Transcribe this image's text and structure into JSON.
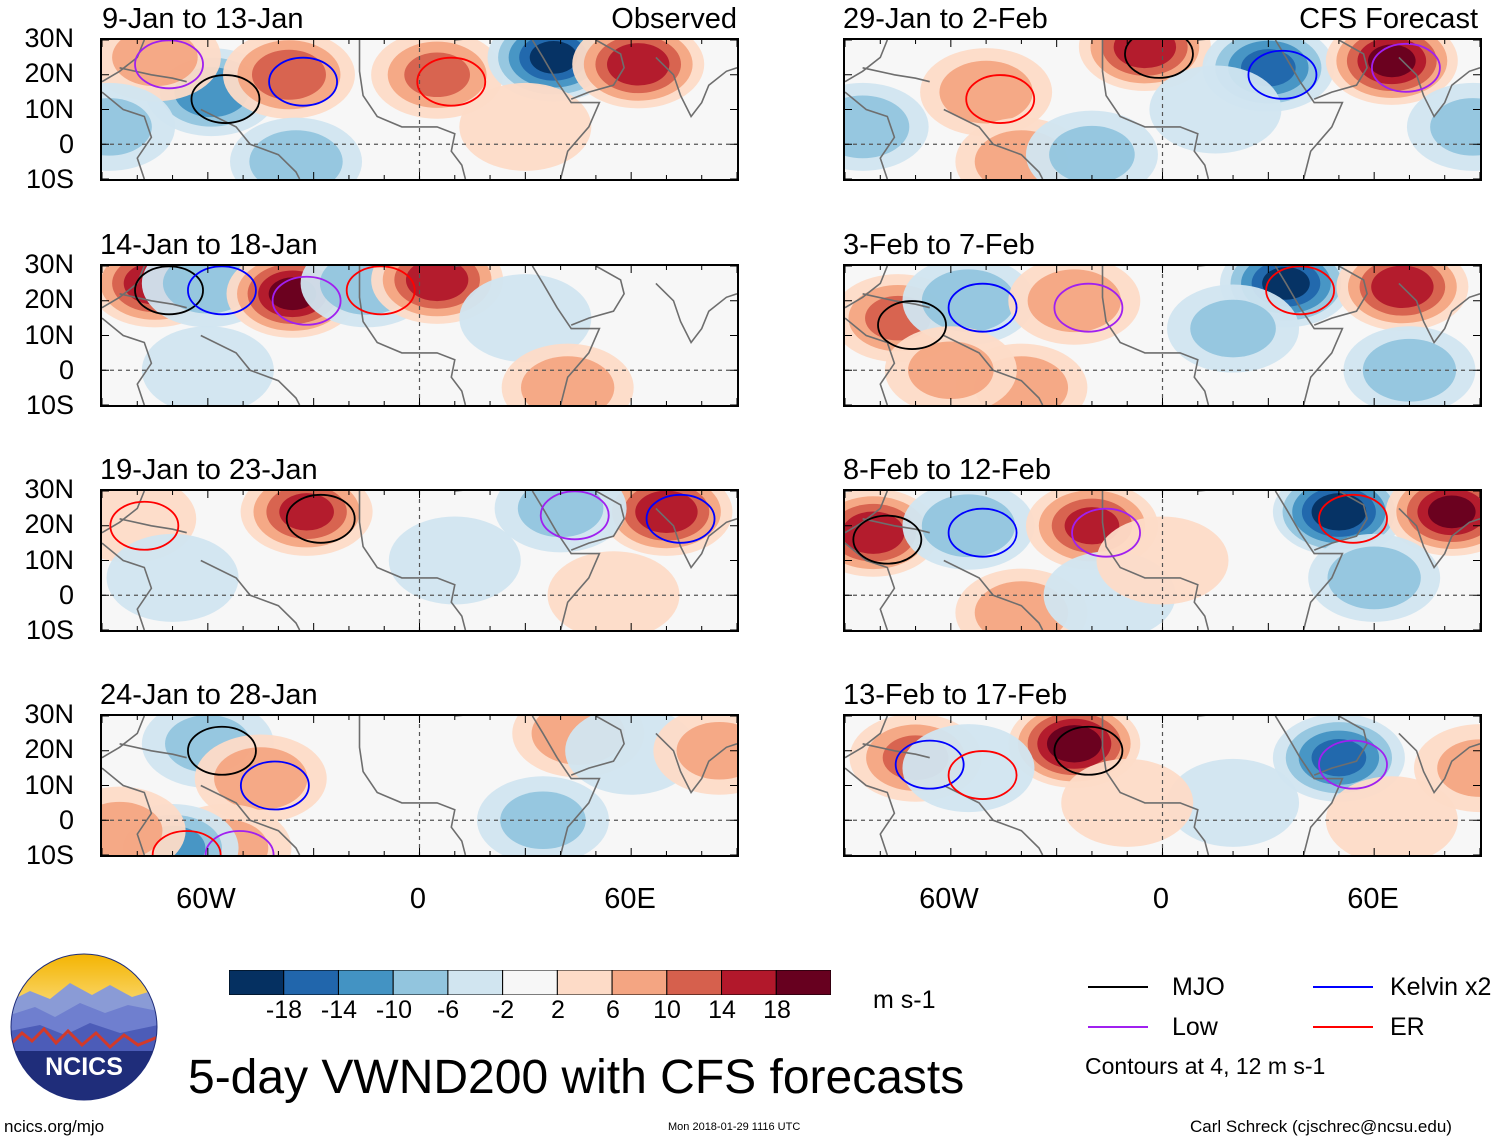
{
  "header": {
    "observed_label": "Observed",
    "forecast_label": "CFS Forecast"
  },
  "panels": [
    {
      "title": "9-Jan to 13-Jan"
    },
    {
      "title": "14-Jan to 18-Jan"
    },
    {
      "title": "19-Jan to 23-Jan"
    },
    {
      "title": "24-Jan to 28-Jan"
    },
    {
      "title": "29-Jan to 2-Feb"
    },
    {
      "title": "3-Feb to 7-Feb"
    },
    {
      "title": "8-Feb to 12-Feb"
    },
    {
      "title": "13-Feb to 17-Feb"
    }
  ],
  "axes": {
    "lat_labels": [
      "30N",
      "20N",
      "10N",
      "0",
      "10S"
    ],
    "lon_labels": [
      "60W",
      "0",
      "60E"
    ]
  },
  "colorbar": {
    "ticks": [
      "-18",
      "-14",
      "-10",
      "-6",
      "-2",
      "2",
      "6",
      "10",
      "14",
      "18"
    ],
    "colors": [
      "#053061",
      "#2166ac",
      "#4393c3",
      "#92c5de",
      "#d1e5f0",
      "#f7f7f7",
      "#fddbc7",
      "#f4a582",
      "#d6604d",
      "#b2182b",
      "#67001f"
    ],
    "units": "m s-1"
  },
  "title": "5-day VWND200 with CFS forecasts",
  "legend": {
    "items": [
      {
        "label": "MJO",
        "color": "#000000"
      },
      {
        "label": "Kelvin x2",
        "color": "#0000ff"
      },
      {
        "label": "Low",
        "color": "#a020f0"
      },
      {
        "label": "ER",
        "color": "#ff0000"
      }
    ],
    "contour_note": "Contours at 4, 12 m s-1"
  },
  "logo": {
    "text": "NCICS"
  },
  "footer": {
    "left": "ncics.org/mjo",
    "center": "Mon 2018-01-29 1116 UTC",
    "right": "Carl Schreck (cjschrec@ncsu.edu)"
  },
  "chart_data": {
    "type": "heatmap",
    "variable": "VWND200",
    "units": "m s-1",
    "lat_range": [
      -10,
      30
    ],
    "lon_range": [
      -90,
      90
    ],
    "levels": [
      -18,
      -14,
      -10,
      -6,
      -2,
      2,
      6,
      10,
      14,
      18
    ],
    "contour_levels": [
      4,
      12
    ],
    "panels": [
      {
        "title": "9-Jan to 13-Jan",
        "source": "Observed",
        "anomalies": [
          {
            "lon": -59,
            "lat": 15,
            "v": -14
          },
          {
            "lon": -37,
            "lat": 20,
            "v": 14
          },
          {
            "lon": -75,
            "lat": 25,
            "v": 8
          },
          {
            "lon": 5,
            "lat": 20,
            "v": 12
          },
          {
            "lon": 38,
            "lat": 25,
            "v": -20
          },
          {
            "lon": 62,
            "lat": 23,
            "v": 18
          },
          {
            "lon": -88,
            "lat": 5,
            "v": -8
          },
          {
            "lon": -35,
            "lat": -5,
            "v": -10
          },
          {
            "lon": 30,
            "lat": 5,
            "v": 6
          }
        ]
      },
      {
        "title": "14-Jan to 18-Jan",
        "source": "Observed",
        "anomalies": [
          {
            "lon": -75,
            "lat": 25,
            "v": 18
          },
          {
            "lon": -60,
            "lat": 25,
            "v": -9
          },
          {
            "lon": -36,
            "lat": 22,
            "v": 20
          },
          {
            "lon": -15,
            "lat": 25,
            "v": -10
          },
          {
            "lon": 5,
            "lat": 26,
            "v": 18
          },
          {
            "lon": 30,
            "lat": 15,
            "v": -4
          },
          {
            "lon": 42,
            "lat": -5,
            "v": 10
          },
          {
            "lon": -60,
            "lat": 0,
            "v": -5
          }
        ]
      },
      {
        "title": "19-Jan to 23-Jan",
        "source": "Observed",
        "anomalies": [
          {
            "lon": -32,
            "lat": 24,
            "v": 16
          },
          {
            "lon": 70,
            "lat": 24,
            "v": 18
          },
          {
            "lon": 40,
            "lat": 25,
            "v": -8
          },
          {
            "lon": -82,
            "lat": 22,
            "v": 6
          },
          {
            "lon": -70,
            "lat": 5,
            "v": -5
          },
          {
            "lon": 10,
            "lat": 10,
            "v": -3
          },
          {
            "lon": 55,
            "lat": 0,
            "v": 4
          }
        ]
      },
      {
        "title": "24-Jan to 28-Jan",
        "source": "Observed",
        "anomalies": [
          {
            "lon": -60,
            "lat": 22,
            "v": -8
          },
          {
            "lon": -45,
            "lat": 12,
            "v": 10
          },
          {
            "lon": -55,
            "lat": -8,
            "v": 8
          },
          {
            "lon": -70,
            "lat": -8,
            "v": -12
          },
          {
            "lon": 45,
            "lat": 25,
            "v": 10
          },
          {
            "lon": 60,
            "lat": 20,
            "v": -4
          },
          {
            "lon": 35,
            "lat": 0,
            "v": -8
          },
          {
            "lon": 85,
            "lat": 20,
            "v": 8
          },
          {
            "lon": -85,
            "lat": -3,
            "v": 8
          }
        ]
      },
      {
        "title": "29-Jan to 2-Feb",
        "source": "CFS Forecast",
        "anomalies": [
          {
            "lon": -5,
            "lat": 28,
            "v": 18
          },
          {
            "lon": 30,
            "lat": 22,
            "v": -16
          },
          {
            "lon": 65,
            "lat": 24,
            "v": 20
          },
          {
            "lon": -50,
            "lat": 15,
            "v": 10
          },
          {
            "lon": -85,
            "lat": 5,
            "v": -10
          },
          {
            "lon": -40,
            "lat": -5,
            "v": 10
          },
          {
            "lon": -20,
            "lat": -3,
            "v": -8
          },
          {
            "lon": 88,
            "lat": 5,
            "v": -8
          },
          {
            "lon": 15,
            "lat": 10,
            "v": -5
          }
        ]
      },
      {
        "title": "3-Feb to 7-Feb",
        "source": "CFS Forecast",
        "anomalies": [
          {
            "lon": -75,
            "lat": 15,
            "v": 12
          },
          {
            "lon": -55,
            "lat": 20,
            "v": -10
          },
          {
            "lon": -25,
            "lat": 20,
            "v": 10
          },
          {
            "lon": 35,
            "lat": 25,
            "v": -20
          },
          {
            "lon": 68,
            "lat": 24,
            "v": 18
          },
          {
            "lon": 70,
            "lat": 0,
            "v": -10
          },
          {
            "lon": -40,
            "lat": -5,
            "v": 10
          },
          {
            "lon": 20,
            "lat": 12,
            "v": -8
          },
          {
            "lon": -60,
            "lat": 0,
            "v": 8
          }
        ]
      },
      {
        "title": "8-Feb to 12-Feb",
        "source": "CFS Forecast",
        "anomalies": [
          {
            "lon": -82,
            "lat": 18,
            "v": 18
          },
          {
            "lon": -55,
            "lat": 20,
            "v": -10
          },
          {
            "lon": -20,
            "lat": 20,
            "v": 16
          },
          {
            "lon": 50,
            "lat": 24,
            "v": -22
          },
          {
            "lon": 82,
            "lat": 24,
            "v": 20
          },
          {
            "lon": 60,
            "lat": 5,
            "v": -10
          },
          {
            "lon": -40,
            "lat": -5,
            "v": 10
          },
          {
            "lon": -15,
            "lat": 0,
            "v": -6
          },
          {
            "lon": 0,
            "lat": 10,
            "v": 6
          }
        ]
      },
      {
        "title": "13-Feb to 17-Feb",
        "source": "CFS Forecast",
        "anomalies": [
          {
            "lon": -25,
            "lat": 22,
            "v": 22
          },
          {
            "lon": -70,
            "lat": 18,
            "v": 12
          },
          {
            "lon": 50,
            "lat": 18,
            "v": -16
          },
          {
            "lon": -55,
            "lat": 15,
            "v": -6
          },
          {
            "lon": 90,
            "lat": 15,
            "v": 8
          },
          {
            "lon": 20,
            "lat": 5,
            "v": -6
          },
          {
            "lon": -10,
            "lat": 5,
            "v": 6
          },
          {
            "lon": 65,
            "lat": 0,
            "v": 4
          }
        ]
      }
    ]
  }
}
